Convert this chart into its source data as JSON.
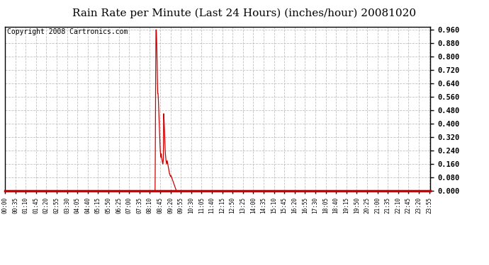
{
  "title": "Rain Rate per Minute (Last 24 Hours) (inches/hour) 20081020",
  "copyright": "Copyright 2008 Cartronics.com",
  "line_color": "#cc0000",
  "bg_color": "#ffffff",
  "grid_color": "#bbbbbb",
  "ylim": [
    0.0,
    0.98
  ],
  "yticks": [
    0.0,
    0.08,
    0.16,
    0.24,
    0.32,
    0.4,
    0.48,
    0.56,
    0.64,
    0.72,
    0.8,
    0.88,
    0.96
  ],
  "total_minutes": 1440,
  "title_fontsize": 11,
  "copyright_fontsize": 7,
  "tick_interval": 35,
  "spike_data": [
    [
      508,
      0.0
    ],
    [
      509,
      0.3
    ],
    [
      510,
      0.7
    ],
    [
      511,
      0.96
    ],
    [
      512,
      0.96
    ],
    [
      513,
      0.92
    ],
    [
      514,
      0.85
    ],
    [
      515,
      0.75
    ],
    [
      516,
      0.65
    ],
    [
      517,
      0.58
    ],
    [
      518,
      0.58
    ],
    [
      519,
      0.55
    ],
    [
      520,
      0.5
    ],
    [
      521,
      0.45
    ],
    [
      522,
      0.4
    ],
    [
      523,
      0.35
    ],
    [
      524,
      0.3
    ],
    [
      525,
      0.26
    ],
    [
      526,
      0.23
    ],
    [
      527,
      0.21
    ],
    [
      528,
      0.2
    ],
    [
      529,
      0.22
    ],
    [
      530,
      0.2
    ],
    [
      531,
      0.19
    ],
    [
      532,
      0.18
    ],
    [
      533,
      0.17
    ],
    [
      534,
      0.16
    ],
    [
      535,
      0.17
    ],
    [
      536,
      0.19
    ],
    [
      537,
      0.46
    ],
    [
      538,
      0.44
    ],
    [
      539,
      0.4
    ],
    [
      540,
      0.35
    ],
    [
      541,
      0.3
    ],
    [
      542,
      0.25
    ],
    [
      543,
      0.22
    ],
    [
      544,
      0.2
    ],
    [
      545,
      0.18
    ],
    [
      546,
      0.17
    ],
    [
      547,
      0.16
    ],
    [
      548,
      0.17
    ],
    [
      549,
      0.18
    ],
    [
      550,
      0.17
    ],
    [
      551,
      0.16
    ],
    [
      552,
      0.15
    ],
    [
      553,
      0.14
    ],
    [
      554,
      0.13
    ],
    [
      555,
      0.12
    ],
    [
      556,
      0.11
    ],
    [
      557,
      0.1
    ],
    [
      558,
      0.1
    ],
    [
      559,
      0.09
    ],
    [
      560,
      0.09
    ],
    [
      561,
      0.085
    ],
    [
      562,
      0.09
    ],
    [
      563,
      0.085
    ],
    [
      564,
      0.08
    ],
    [
      565,
      0.075
    ],
    [
      566,
      0.07
    ],
    [
      567,
      0.065
    ],
    [
      568,
      0.06
    ],
    [
      569,
      0.055
    ],
    [
      570,
      0.05
    ],
    [
      571,
      0.045
    ],
    [
      572,
      0.04
    ],
    [
      573,
      0.035
    ],
    [
      574,
      0.03
    ],
    [
      575,
      0.025
    ],
    [
      576,
      0.02
    ],
    [
      577,
      0.015
    ],
    [
      578,
      0.01
    ],
    [
      579,
      0.005
    ],
    [
      580,
      0.0
    ]
  ]
}
